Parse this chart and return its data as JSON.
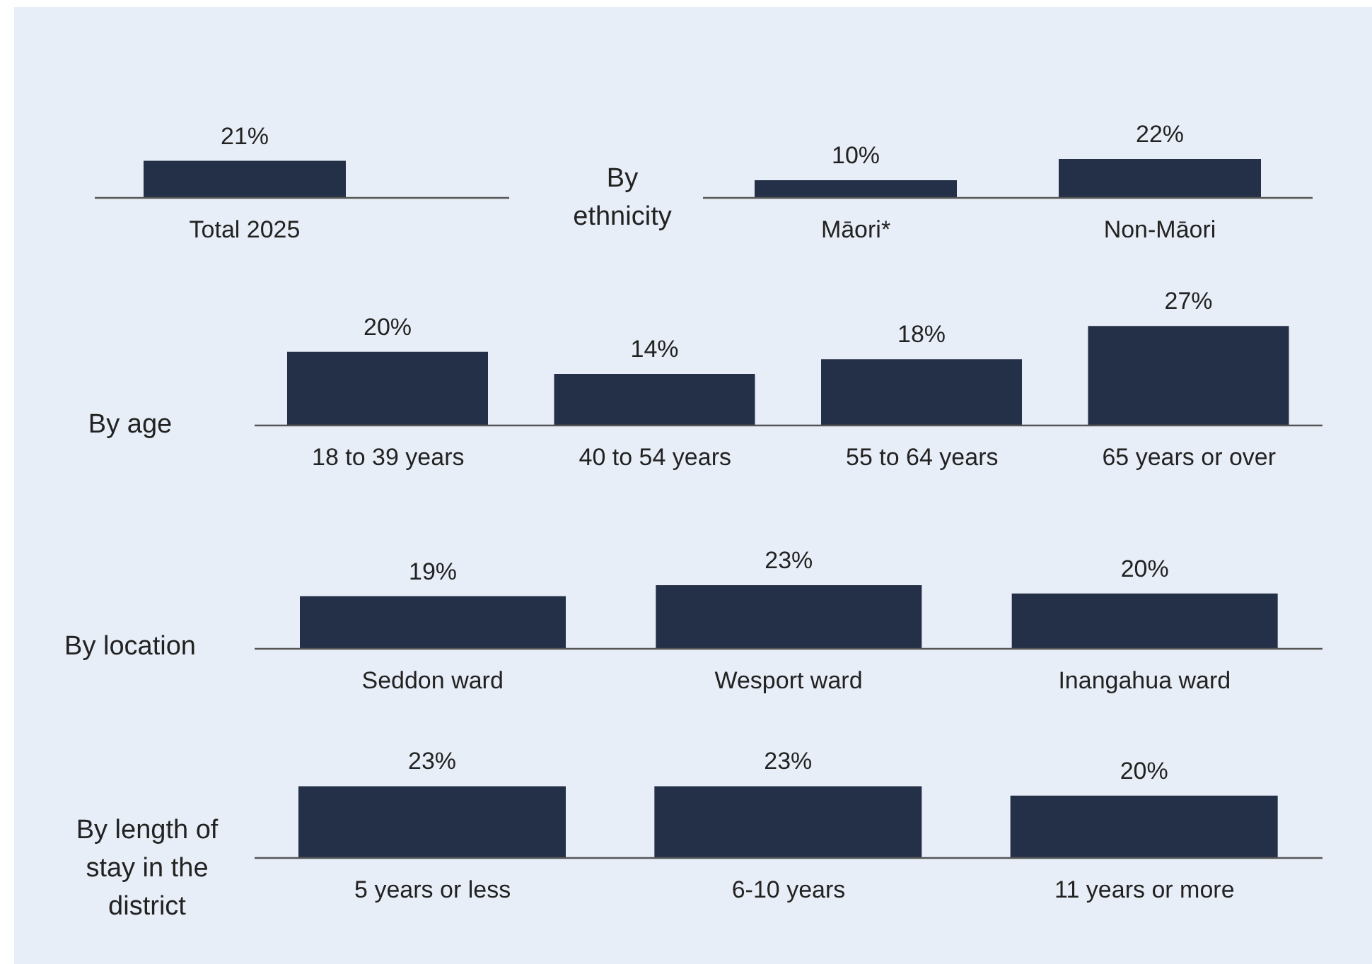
{
  "chart_data": [
    {
      "type": "bar",
      "annotations": [
        "By ethnicity"
      ],
      "categories": [
        "Total 2025",
        "Māori*",
        "Non-Māori"
      ],
      "values": [
        21,
        10,
        22
      ],
      "color": "#243047",
      "value_labels": [
        "21%",
        "10%",
        "22%"
      ],
      "data_labels": true
    },
    {
      "type": "bar",
      "title": "By age",
      "categories": [
        "18 to 39 years",
        "40 to 54 years",
        "55 to 64 years",
        "65 years or over"
      ],
      "values": [
        20,
        14,
        18,
        27
      ],
      "color": "#243047",
      "value_labels": [
        "20%",
        "14%",
        "18%",
        "27%"
      ],
      "data_labels": true
    },
    {
      "type": "bar",
      "title": "By location",
      "categories": [
        "Seddon ward",
        "Wesport ward",
        "Inangahua ward"
      ],
      "values": [
        19,
        23,
        20
      ],
      "color": "#243047",
      "value_labels": [
        "19%",
        "23%",
        "20%"
      ],
      "data_labels": true
    },
    {
      "type": "bar",
      "title": "By length of stay in the district",
      "categories": [
        "5 years or less",
        "6-10 years",
        "11 years or more"
      ],
      "values": [
        23,
        23,
        20
      ],
      "color": "#243047",
      "value_labels": [
        "23%",
        "23%",
        "20%"
      ],
      "data_labels": true
    }
  ]
}
